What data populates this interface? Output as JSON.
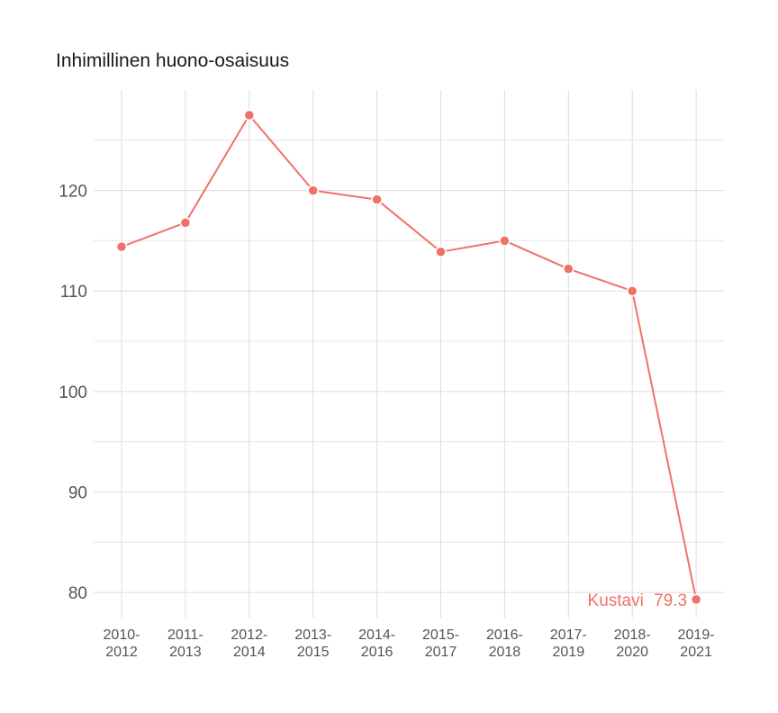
{
  "chart_data": {
    "type": "line",
    "title": "Inhimillinen huono-osaisuus",
    "xlabel": "",
    "ylabel": "",
    "categories": [
      [
        "2010-",
        "2012"
      ],
      [
        "2011-",
        "2013"
      ],
      [
        "2012-",
        "2014"
      ],
      [
        "2013-",
        "2015"
      ],
      [
        "2014-",
        "2016"
      ],
      [
        "2015-",
        "2017"
      ],
      [
        "2016-",
        "2018"
      ],
      [
        "2017-",
        "2019"
      ],
      [
        "2018-",
        "2020"
      ],
      [
        "2019-",
        "2021"
      ]
    ],
    "yticks": [
      80,
      90,
      100,
      110,
      120
    ],
    "ylim": [
      77.5,
      130
    ],
    "grid": true,
    "legend": "none",
    "series": [
      {
        "name": "Kustavi",
        "color": "#f07167",
        "values": [
          114.4,
          116.8,
          127.5,
          120.0,
          119.1,
          113.9,
          115.0,
          112.2,
          110.0,
          79.3
        ]
      }
    ],
    "end_label": {
      "name": "Kustavi",
      "value": "79.3"
    }
  }
}
